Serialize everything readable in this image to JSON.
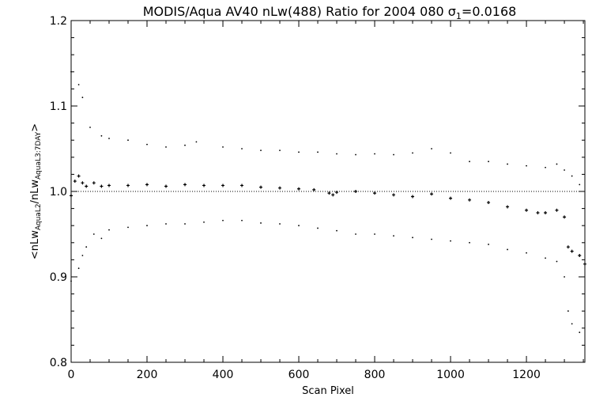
{
  "chart_data": {
    "type": "scatter",
    "title": "MODIS/Aqua AV40 nLw(488) Ratio for 2004 080 σ",
    "title_sub": "1",
    "title_value": "=0.0168",
    "xlabel": "Scan Pixel",
    "ylabel": {
      "prefix": "<nLw",
      "sub1": "AquaL2",
      "mid": "/nLw",
      "sub2": "AquaL3:7DAY",
      "suffix": ">"
    },
    "xlim": [
      0,
      1354
    ],
    "ylim": [
      0.8,
      1.2
    ],
    "xticks": [
      0,
      200,
      400,
      600,
      800,
      1000,
      1200
    ],
    "yticks": [
      0.8,
      0.9,
      1.0,
      1.1,
      1.2
    ],
    "ytick_labels": [
      "0.8",
      "0.9",
      "1.0",
      "1.1",
      "1.2"
    ],
    "reference_line": 1.0,
    "grid": false,
    "series": [
      {
        "role": "mean",
        "marker": "cross",
        "x": [
          0,
          10,
          20,
          30,
          40,
          60,
          80,
          100,
          150,
          200,
          250,
          300,
          350,
          400,
          450,
          500,
          550,
          600,
          640,
          680,
          690,
          700,
          750,
          800,
          850,
          900,
          950,
          1000,
          1050,
          1100,
          1150,
          1200,
          1230,
          1250,
          1280,
          1300,
          1310,
          1320,
          1340,
          1354
        ],
        "y": [
          0.995,
          1.012,
          1.018,
          1.01,
          1.006,
          1.01,
          1.006,
          1.007,
          1.007,
          1.008,
          1.006,
          1.008,
          1.007,
          1.007,
          1.007,
          1.005,
          1.004,
          1.003,
          1.002,
          0.998,
          0.996,
          0.999,
          1.0,
          0.998,
          0.996,
          0.994,
          0.997,
          0.992,
          0.99,
          0.987,
          0.982,
          0.978,
          0.975,
          0.975,
          0.978,
          0.97,
          0.935,
          0.93,
          0.925,
          0.915
        ]
      },
      {
        "role": "upper",
        "marker": "dot",
        "x": [
          0,
          20,
          30,
          50,
          80,
          100,
          150,
          200,
          250,
          300,
          330,
          400,
          450,
          500,
          550,
          600,
          650,
          700,
          750,
          800,
          850,
          900,
          950,
          1000,
          1050,
          1100,
          1150,
          1200,
          1250,
          1280,
          1300,
          1320,
          1340
        ],
        "y": [
          1.14,
          1.125,
          1.11,
          1.075,
          1.065,
          1.062,
          1.06,
          1.055,
          1.052,
          1.054,
          1.058,
          1.052,
          1.05,
          1.048,
          1.048,
          1.046,
          1.046,
          1.044,
          1.043,
          1.044,
          1.043,
          1.045,
          1.05,
          1.045,
          1.035,
          1.035,
          1.032,
          1.03,
          1.028,
          1.032,
          1.025,
          1.018,
          1.008
        ]
      },
      {
        "role": "lower",
        "marker": "dot",
        "x": [
          0,
          20,
          30,
          40,
          60,
          80,
          100,
          150,
          200,
          250,
          300,
          350,
          400,
          450,
          500,
          550,
          600,
          650,
          700,
          750,
          800,
          850,
          900,
          950,
          1000,
          1050,
          1100,
          1150,
          1200,
          1250,
          1280,
          1300,
          1310,
          1320,
          1340
        ],
        "y": [
          0.895,
          0.91,
          0.925,
          0.935,
          0.95,
          0.945,
          0.955,
          0.958,
          0.96,
          0.962,
          0.962,
          0.964,
          0.966,
          0.966,
          0.963,
          0.962,
          0.96,
          0.957,
          0.954,
          0.95,
          0.95,
          0.948,
          0.946,
          0.944,
          0.942,
          0.94,
          0.938,
          0.932,
          0.928,
          0.922,
          0.918,
          0.9,
          0.86,
          0.845,
          0.835
        ]
      }
    ]
  }
}
